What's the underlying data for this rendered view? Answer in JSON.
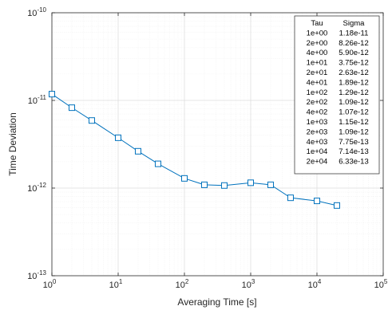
{
  "chart_data": {
    "type": "line",
    "title": "",
    "xlabel": "Averaging Time [s]",
    "ylabel": "Time Deviation",
    "xscale": "log",
    "yscale": "log",
    "xlim": [
      1,
      100000
    ],
    "ylim": [
      1e-13,
      1e-10
    ],
    "grid": true,
    "x_tick_labels": [
      {
        "base": "10",
        "exp": "0"
      },
      {
        "base": "10",
        "exp": "1"
      },
      {
        "base": "10",
        "exp": "2"
      },
      {
        "base": "10",
        "exp": "3"
      },
      {
        "base": "10",
        "exp": "4"
      },
      {
        "base": "10",
        "exp": "5"
      }
    ],
    "y_tick_labels": [
      {
        "base": "10",
        "exp": "-13"
      },
      {
        "base": "10",
        "exp": "-12"
      },
      {
        "base": "10",
        "exp": "-11"
      },
      {
        "base": "10",
        "exp": "-10"
      }
    ],
    "series": [
      {
        "marker": "square",
        "color": "#0072bd",
        "x": [
          1,
          2,
          4,
          10,
          20,
          40,
          100,
          200,
          400,
          1000,
          2000,
          4000,
          10000,
          20000
        ],
        "y": [
          1.18e-11,
          8.26e-12,
          5.9e-12,
          3.75e-12,
          2.63e-12,
          1.89e-12,
          1.29e-12,
          1.09e-12,
          1.07e-12,
          1.15e-12,
          1.09e-12,
          7.75e-13,
          7.14e-13,
          6.33e-13
        ]
      }
    ],
    "legend": {
      "placement": "top-right",
      "headers": [
        "Tau",
        "Sigma"
      ],
      "rows": [
        [
          "1e+00",
          "1.18e-11"
        ],
        [
          "2e+00",
          "8.26e-12"
        ],
        [
          "4e+00",
          "5.90e-12"
        ],
        [
          "1e+01",
          "3.75e-12"
        ],
        [
          "2e+01",
          "2.63e-12"
        ],
        [
          "4e+01",
          "1.89e-12"
        ],
        [
          "1e+02",
          "1.29e-12"
        ],
        [
          "2e+02",
          "1.09e-12"
        ],
        [
          "4e+02",
          "1.07e-12"
        ],
        [
          "1e+03",
          "1.15e-12"
        ],
        [
          "2e+03",
          "1.09e-12"
        ],
        [
          "4e+03",
          "7.75e-13"
        ],
        [
          "1e+04",
          "7.14e-13"
        ],
        [
          "2e+04",
          "6.33e-13"
        ]
      ]
    }
  }
}
